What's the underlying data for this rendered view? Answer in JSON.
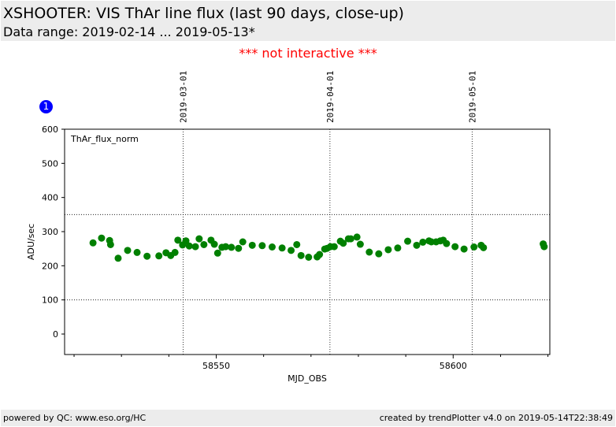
{
  "header": {
    "title": "XSHOOTER: VIS ThAr line flux (last 90 days, close-up)",
    "subtitle": "Data range: 2019-02-14 ... 2019-05-13*"
  },
  "notice": "*** not interactive ***",
  "badge": "1",
  "footer": {
    "left": "powered by QC: www.eso.org/HC",
    "right": "created by trendPlotter v4.0 on 2019-05-14T22:38:49"
  },
  "colors": {
    "points": "#008000",
    "badge": "#0000ff",
    "notice": "#ff0000",
    "band": "#ececec"
  },
  "chart_data": {
    "type": "scatter",
    "annotation": "ThAr_flux_norm",
    "xlabel": "MJD_OBS",
    "ylabel": "ADU/sec",
    "xlim": [
      58518,
      58620.4
    ],
    "ylim": [
      -60,
      600
    ],
    "xticks": [
      58550,
      58600
    ],
    "xtick_labels": [
      "58550",
      "58600"
    ],
    "yticks": [
      0,
      100,
      200,
      300,
      400,
      500,
      600
    ],
    "ytick_labels": [
      "0",
      "100",
      "200",
      "300",
      "400",
      "500",
      "600"
    ],
    "reference_lines_y": [
      100,
      350
    ],
    "date_markers": [
      {
        "label": "2019-03-01",
        "x": 58543.0
      },
      {
        "label": "2019-04-01",
        "x": 58574.0
      },
      {
        "label": "2019-05-01",
        "x": 58604.0
      }
    ],
    "grid": false,
    "series": [
      {
        "x": [
          58524.0,
          58525.8,
          58527.5,
          58527.7,
          58529.3,
          58531.3,
          58533.3,
          58535.4,
          58537.9,
          58539.4,
          58540.4,
          58541.3,
          58541.9,
          58542.9,
          58543.6,
          58544.3,
          58545.6,
          58546.4,
          58547.4,
          58548.9,
          58549.6,
          58550.3,
          58551.2,
          58552.0,
          58553.2,
          58554.7,
          58555.6,
          58557.6,
          58559.7,
          58561.8,
          58563.9,
          58565.8,
          58567.0,
          58567.9,
          58569.5,
          58571.3,
          58571.8,
          58572.9,
          58573.4,
          58574.1,
          58574.9,
          58576.2,
          58576.8,
          58577.9,
          58578.4,
          58579.7,
          58580.4,
          58582.3,
          58584.3,
          58586.3,
          58588.3,
          58590.4,
          58592.3,
          58593.6,
          58594.9,
          58595.4,
          58596.4,
          58597.3,
          58597.9,
          58598.6,
          58600.4,
          58602.3,
          58604.4,
          58605.9,
          58606.4,
          58619.0,
          58619.2
        ],
        "y": [
          267,
          281,
          274,
          262,
          222,
          245,
          239,
          228,
          229,
          238,
          230,
          239,
          275,
          261,
          273,
          258,
          256,
          279,
          262,
          275,
          263,
          237,
          254,
          256,
          254,
          251,
          270,
          260,
          259,
          255,
          252,
          245,
          262,
          230,
          225,
          226,
          233,
          249,
          251,
          256,
          256,
          272,
          266,
          279,
          279,
          284,
          263,
          240,
          235,
          247,
          252,
          272,
          260,
          269,
          273,
          270,
          270,
          273,
          275,
          265,
          256,
          249,
          255,
          260,
          253,
          264,
          256
        ]
      }
    ]
  }
}
